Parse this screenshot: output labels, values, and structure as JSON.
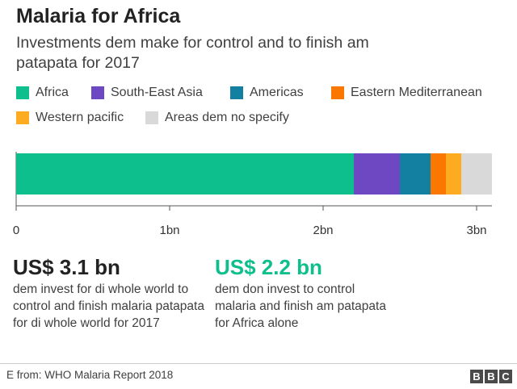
{
  "title": "Malaria for Africa",
  "subtitle": "Investments dem make for control and to finish am patapata for 2017",
  "chart_data": {
    "type": "bar",
    "orientation": "horizontal",
    "stacked": true,
    "categories": [
      ""
    ],
    "series": [
      {
        "name": "Africa",
        "values": [
          2.2
        ],
        "color": "#0dbf8c"
      },
      {
        "name": "South-East Asia",
        "values": [
          0.3
        ],
        "color": "#6e48c2"
      },
      {
        "name": "Americas",
        "values": [
          0.2
        ],
        "color": "#1380a1"
      },
      {
        "name": "Eastern Mediterranean",
        "values": [
          0.1
        ],
        "color": "#fa7800"
      },
      {
        "name": "Western pacific",
        "values": [
          0.1
        ],
        "color": "#fdab21"
      },
      {
        "name": "Areas dem no specify",
        "values": [
          0.2
        ],
        "color": "#d9d9d9"
      }
    ],
    "xlim": [
      0,
      3.1
    ],
    "ticks": [
      0,
      1,
      2,
      3
    ],
    "tick_labels": [
      "0",
      "1bn",
      "2bn",
      "3bn"
    ],
    "xlabel": "",
    "ylabel": "",
    "grid": false,
    "legend_position": "top"
  },
  "stats": [
    {
      "value": "US$ 3.1 bn",
      "description": "dem invest for di whole world to control and finish malaria patapata for di whole world for 2017",
      "color": "#222222"
    },
    {
      "value": "US$ 2.2 bn",
      "description": "dem don invest to control malaria and finish am patapata for Africa alone",
      "color": "#0dbf8c"
    }
  ],
  "source": "E from: WHO Malaria Report 2018",
  "logo": {
    "letters": [
      "B",
      "B",
      "C"
    ]
  }
}
